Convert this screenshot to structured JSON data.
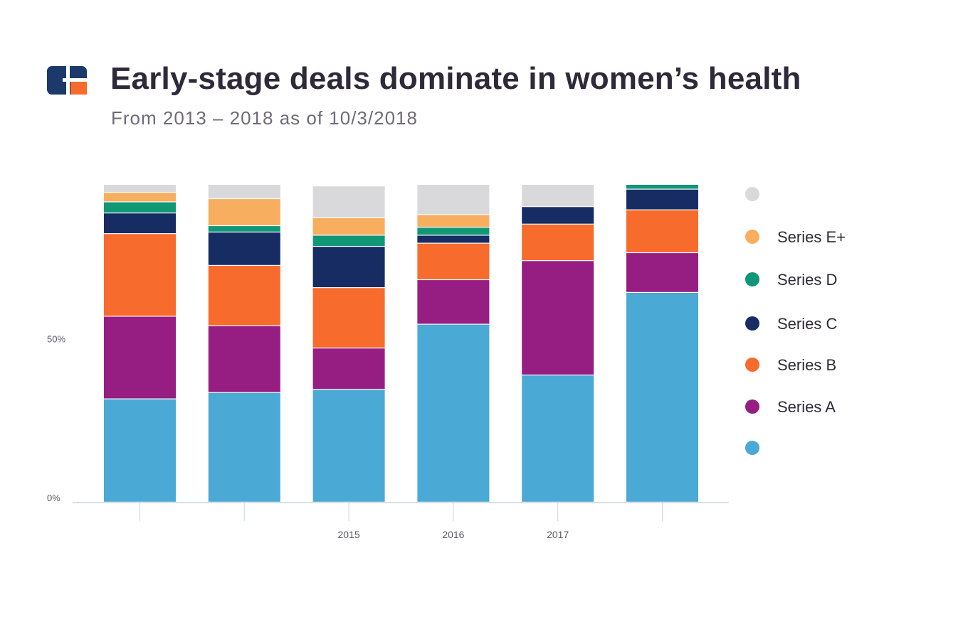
{
  "header": {
    "title": "Early-stage deals dominate in women’s health",
    "subtitle": "From 2013 – 2018 as of 10/3/2018",
    "logo_icon": "cb-insights-logo-icon"
  },
  "chart_data": {
    "type": "bar",
    "stacked": true,
    "percent": true,
    "categories": [
      "",
      "",
      "2015",
      "2016",
      "2017",
      ""
    ],
    "ytick_labels": [
      "0%",
      "50%"
    ],
    "ylim": [
      0,
      100
    ],
    "grid": false,
    "legend_position": "right",
    "series": [
      {
        "name": "",
        "color": "#4aa9d5",
        "values": [
          32.5,
          34.5,
          35.5,
          56,
          40,
          66
        ]
      },
      {
        "name": "Series A",
        "color": "#961e82",
        "values": [
          26,
          21,
          13,
          14,
          36,
          12.5
        ]
      },
      {
        "name": "Series B",
        "color": "#f76b2c",
        "values": [
          26,
          19,
          19,
          11.5,
          11.5,
          13.5
        ]
      },
      {
        "name": "Series C",
        "color": "#162c63",
        "values": [
          6.5,
          10.5,
          13,
          2.5,
          5.5,
          6.5
        ]
      },
      {
        "name": "Series D",
        "color": "#0f9776",
        "values": [
          3.5,
          2,
          3.5,
          2.5,
          0,
          1.5
        ]
      },
      {
        "name": "Series E+",
        "color": "#f8ae5f",
        "values": [
          3,
          8.5,
          5.5,
          4,
          0,
          0
        ]
      },
      {
        "name": "",
        "color": "#d9d9dc",
        "values": [
          2.5,
          4.5,
          10,
          9.5,
          7,
          0
        ]
      }
    ]
  }
}
